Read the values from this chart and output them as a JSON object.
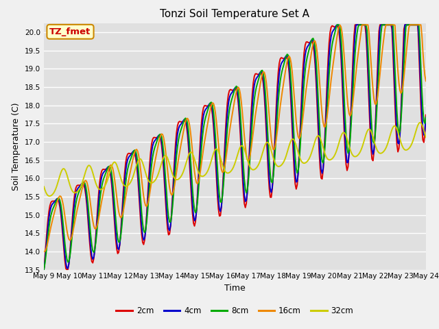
{
  "title": "Tonzi Soil Temperature Set A",
  "xlabel": "Time",
  "ylabel": "Soil Temperature (C)",
  "ylim": [
    13.5,
    20.25
  ],
  "xtick_labels": [
    "May 9",
    "May 10",
    "May 11",
    "May 12",
    "May 13",
    "May 14",
    "May 15",
    "May 16",
    "May 17",
    "May 18",
    "May 19",
    "May 20",
    "May 21",
    "May 22",
    "May 23",
    "May 24"
  ],
  "legend_labels": [
    "2cm",
    "4cm",
    "8cm",
    "16cm",
    "32cm"
  ],
  "legend_colors": [
    "#dd0000",
    "#0000cc",
    "#00aa00",
    "#ee8800",
    "#cccc00"
  ],
  "annotation_text": "TZ_fmet",
  "annotation_bg": "#ffffcc",
  "annotation_border": "#cc8800",
  "annotation_fg": "#cc0000",
  "background_color": "#e0e0e0",
  "fig_background": "#f0f0f0",
  "grid_color": "#ffffff",
  "title_fontsize": 11,
  "axis_fontsize": 9,
  "tick_fontsize": 7.5,
  "legend_fontsize": 8.5,
  "line_width": 1.4
}
